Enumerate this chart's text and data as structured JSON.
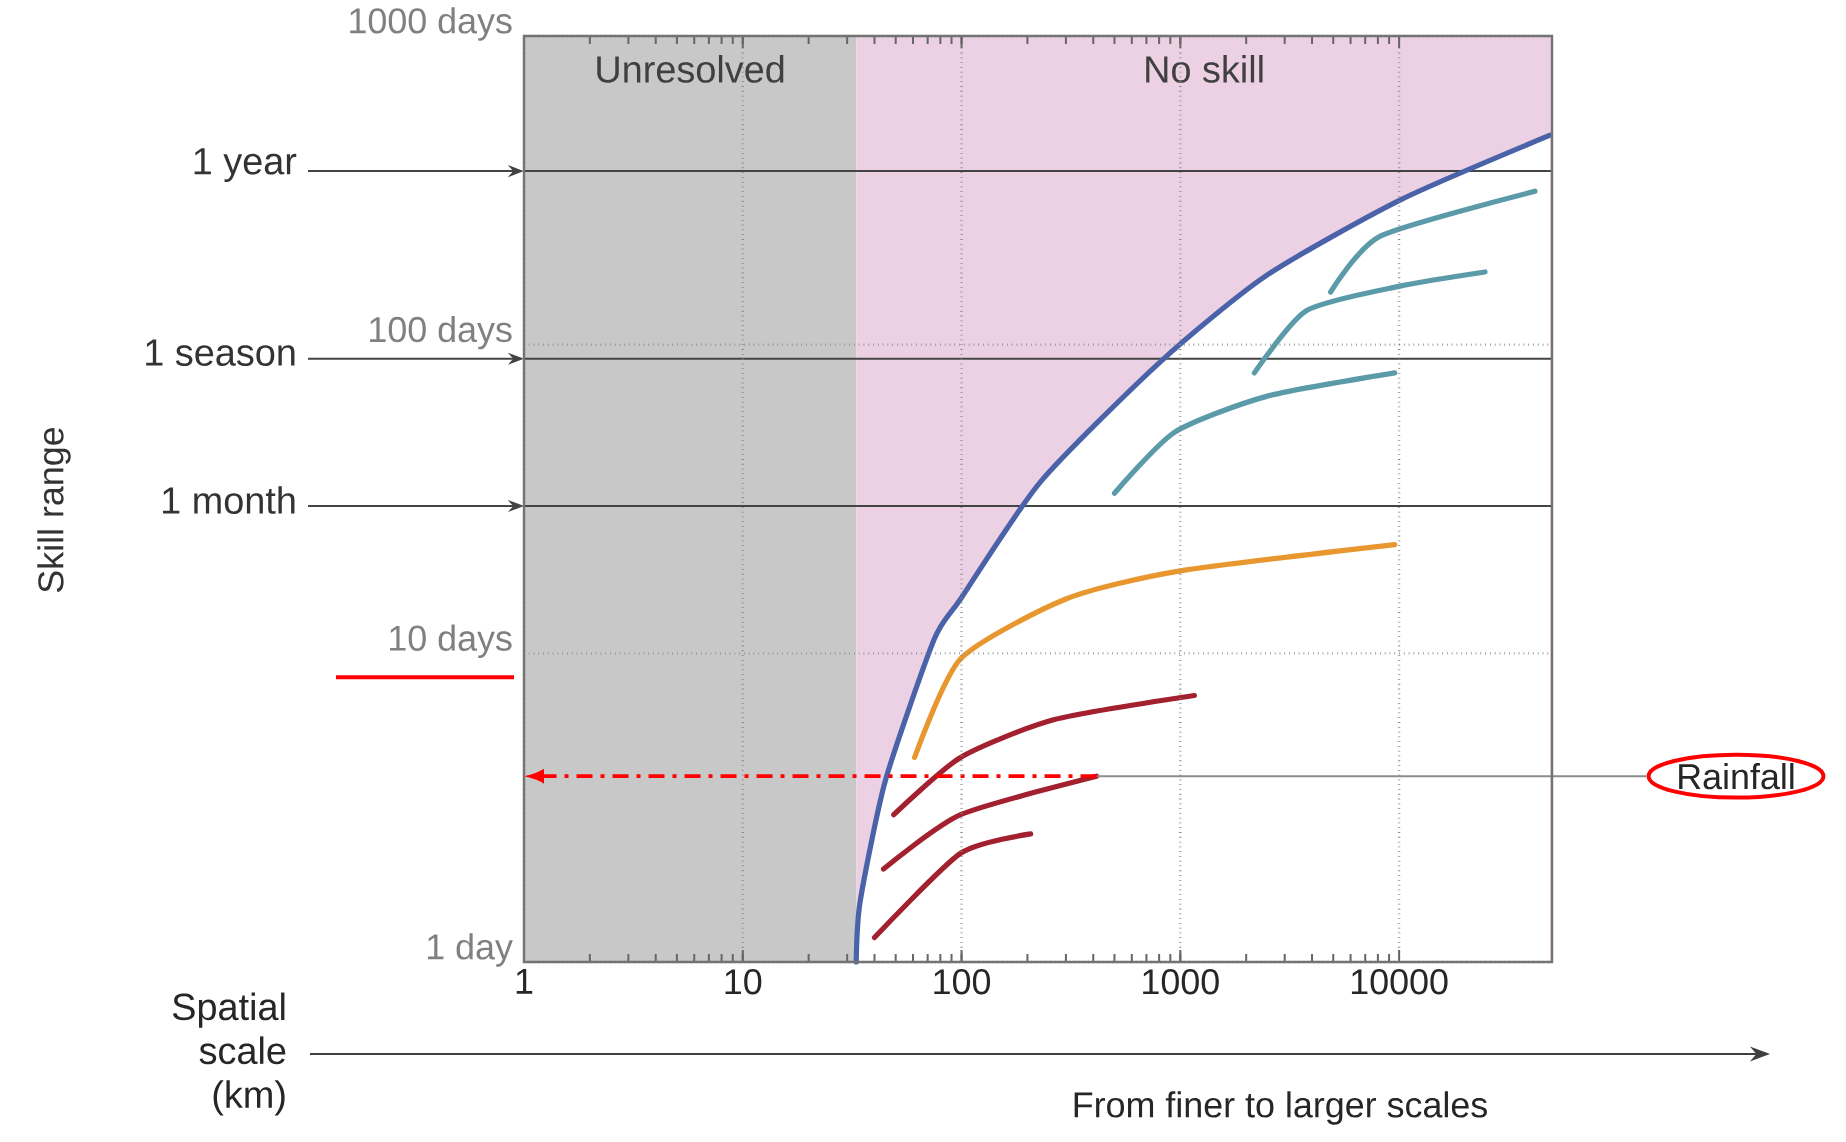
{
  "chart_data": {
    "type": "line",
    "xlabel": "Spatial scale (km)",
    "log": "xy",
    "xlim": [
      1,
      50000
    ],
    "ylim": [
      1,
      1000
    ],
    "xticks": [
      1,
      10,
      100,
      1000,
      10000
    ],
    "yticks": [
      {
        "value": 1,
        "label": "1 day"
      },
      {
        "value": 10,
        "label": "10 days"
      },
      {
        "value": 100,
        "label": "100 days"
      },
      {
        "value": 1000,
        "label": "1000 days"
      }
    ],
    "grid": true,
    "marker": "none",
    "line_style": "solid",
    "series": [
      {
        "color": "#4a62a8",
        "x": [
          33,
          34.4,
          45,
          75,
          99,
          230,
          810,
          2460,
          10200,
          49000
        ],
        "values": [
          1,
          1.57,
          3.9,
          11.1,
          15,
          36,
          88,
          167,
          295,
          477
        ]
      },
      {
        "color": "#5b9aa9",
        "x": [
          4860,
          8240,
          41800
        ],
        "values": [
          148,
          225,
          314
        ]
      },
      {
        "color": "#5b9aa9",
        "x": [
          2180,
          3780,
          10200,
          24700
        ],
        "values": [
          81,
          129,
          155,
          172
        ]
      },
      {
        "color": "#5b9aa9",
        "x": [
          500,
          940,
          2480,
          9550
        ],
        "values": [
          33,
          52,
          68,
          81
        ]
      },
      {
        "color": "#e8972f",
        "x": [
          61,
          99,
          300,
          1000,
          9550
        ],
        "values": [
          4.6,
          9.6,
          15,
          18.5,
          22.5
        ]
      },
      {
        "color": "#a3202f",
        "x": [
          49,
          99,
          266,
          1160
        ],
        "values": [
          3.0,
          4.6,
          6.1,
          7.3
        ]
      },
      {
        "color": "#a3202f",
        "x": [
          44,
          99,
          414
        ],
        "values": [
          2.0,
          3.0,
          4.0
        ]
      },
      {
        "color": "#a3202f",
        "x": [
          40,
          99,
          207
        ],
        "values": [
          1.2,
          2.25,
          2.6
        ]
      }
    ],
    "ref_lines": [
      {
        "axis": "y",
        "value": 365,
        "label": "1 year",
        "color": "#444444"
      },
      {
        "axis": "y",
        "value": 90,
        "label": "1 season",
        "color": "#444444"
      },
      {
        "axis": "y",
        "value": 30,
        "label": "1 month",
        "color": "#444444"
      }
    ],
    "bands": [
      {
        "axis": "x",
        "from": 1,
        "to": 33,
        "label": "Unresolved",
        "color": "#c8c8c8"
      },
      {
        "axis": "x",
        "from": 33,
        "to": 50000,
        "label": "No skill",
        "color": "#ecd0e3"
      }
    ],
    "annotations": [
      "Skill range",
      "From finer to larger scales",
      {
        "text": "Rainfall",
        "x": 414,
        "y": 4.0
      }
    ]
  }
}
